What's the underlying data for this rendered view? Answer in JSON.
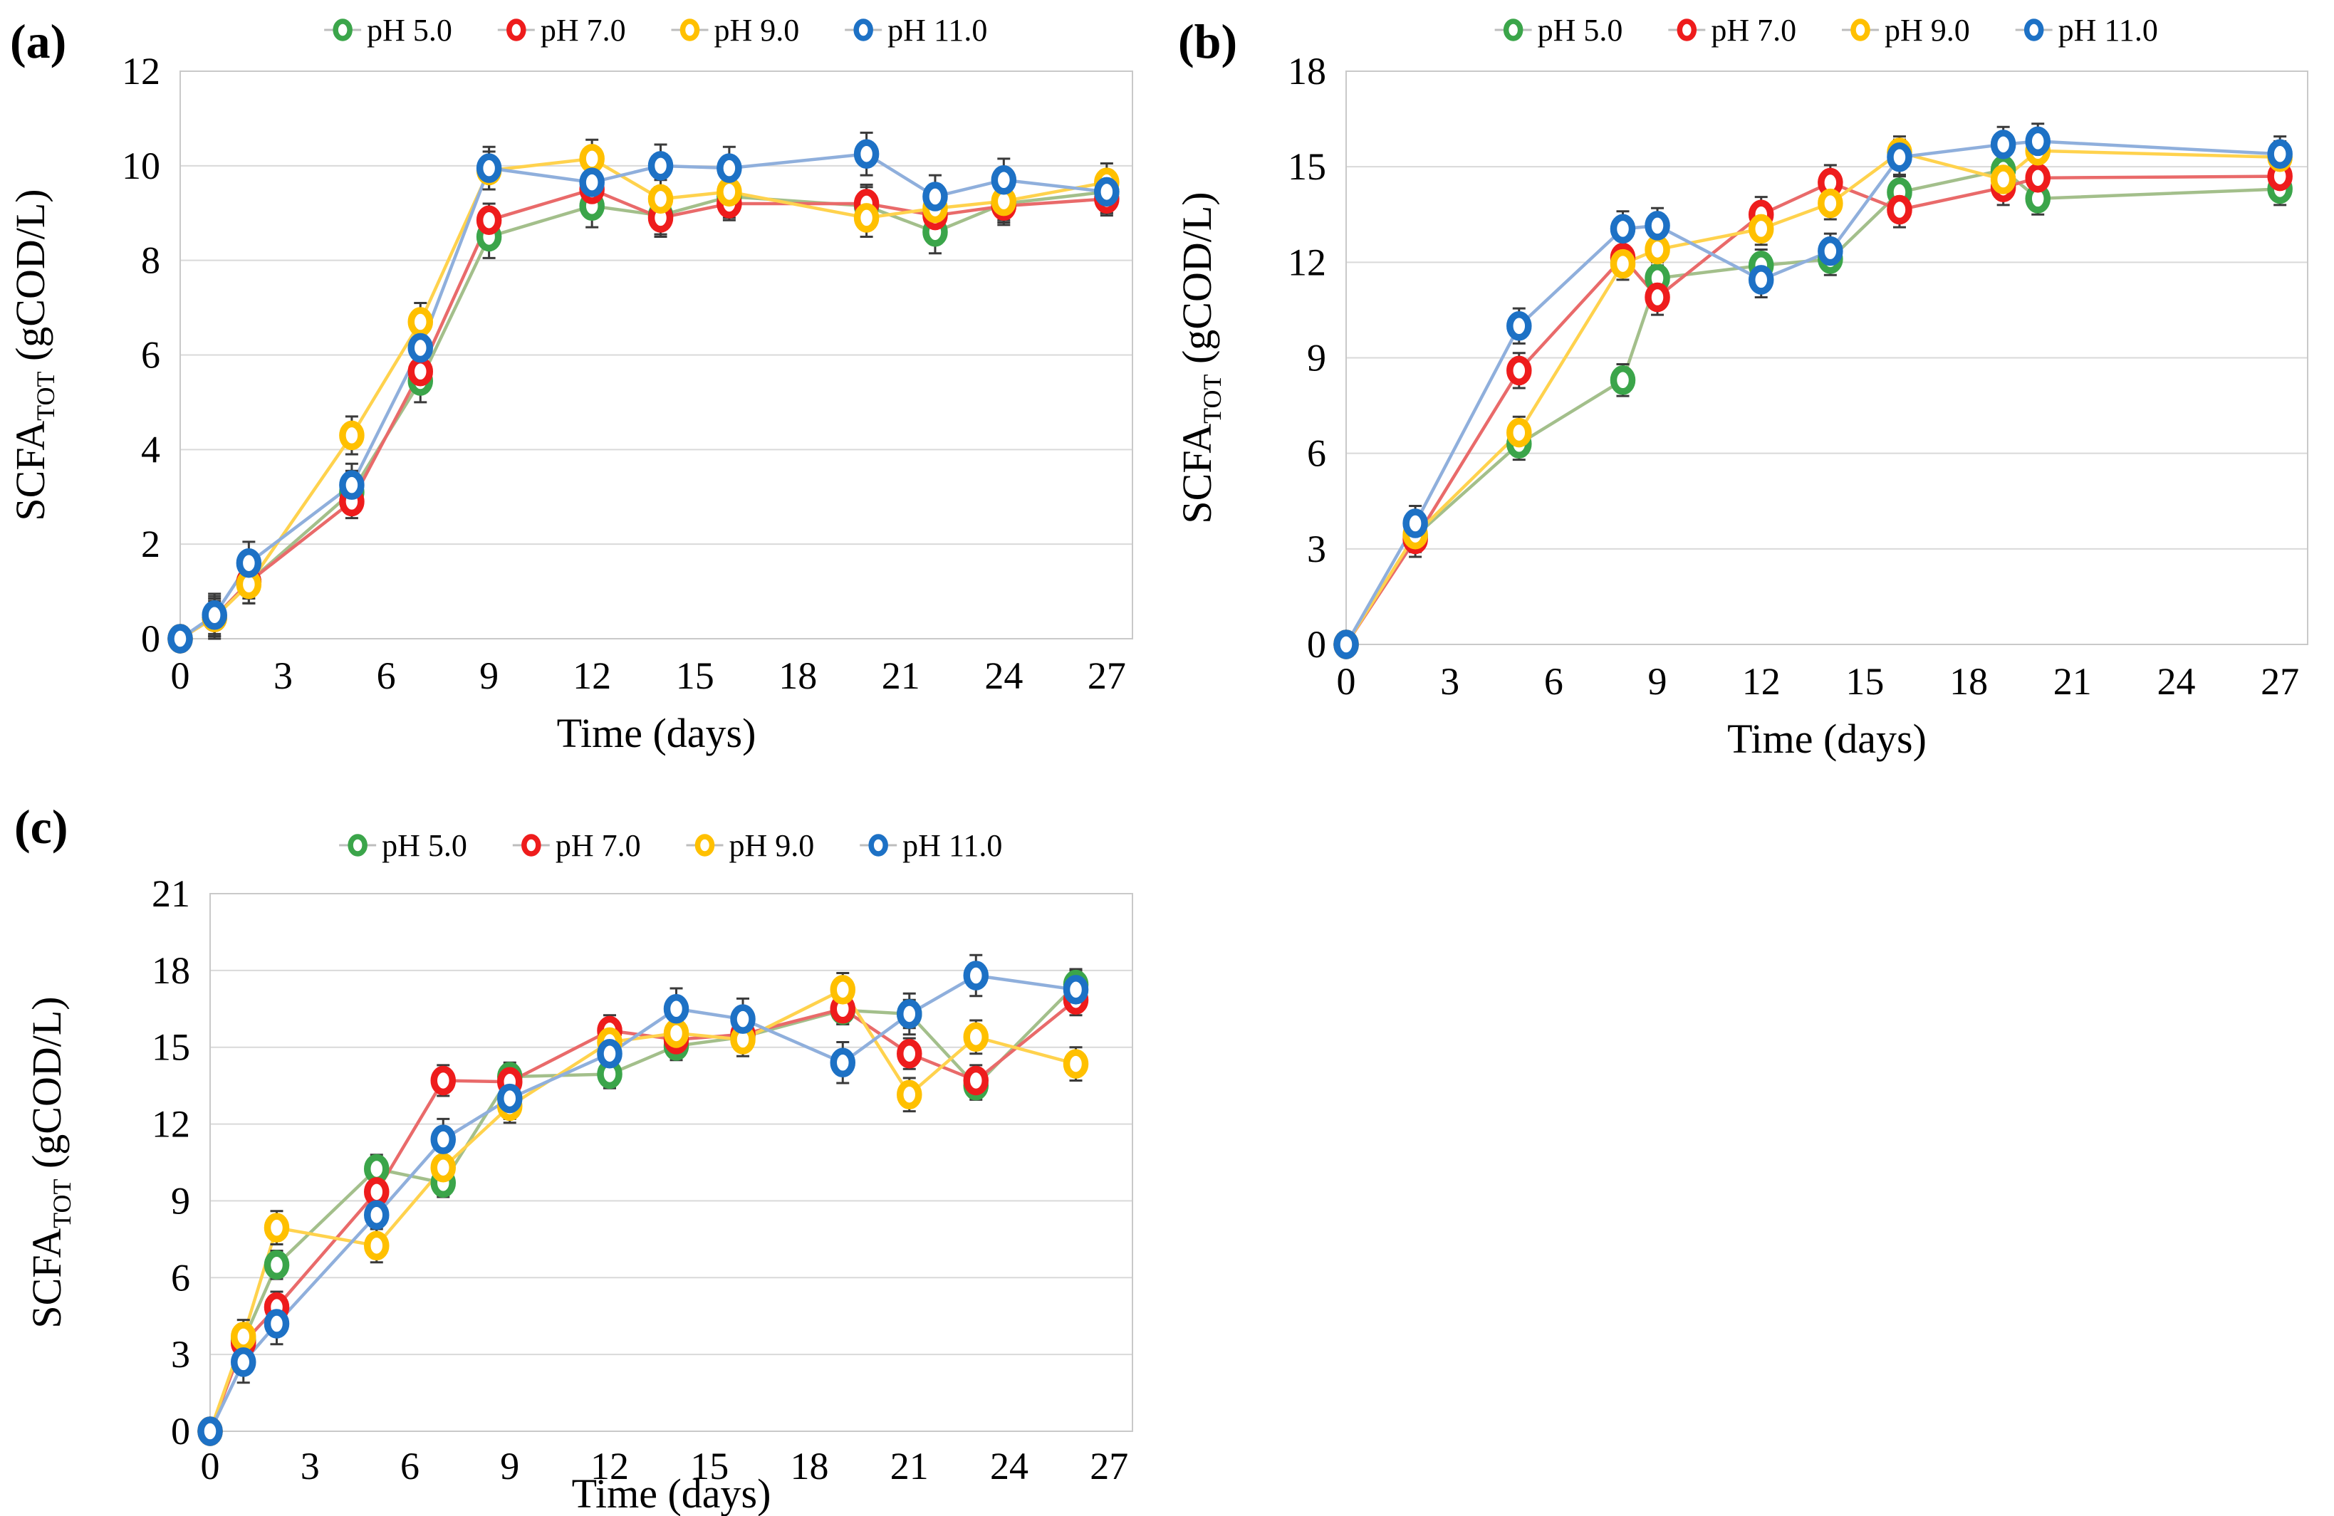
{
  "page": {
    "background": "#ffffff",
    "text_color": "#000000",
    "grid_color": "#d9d9d9",
    "border_color": "#c9c9c9",
    "error_bar_color": "#3a3a3a",
    "legend_connector_color": "#bdbdbd"
  },
  "chart_data": [
    {
      "panel": "(a)",
      "type": "line",
      "xlabel": "Time (days)",
      "ylabel": {
        "main": "SCFA",
        "sub": "TOT",
        "rest": " (gCOD/L)"
      },
      "xlim": [
        0,
        27.75
      ],
      "ylim": [
        0,
        12
      ],
      "xticks": [
        0,
        3,
        6,
        9,
        12,
        15,
        18,
        21,
        24,
        27
      ],
      "yticks": [
        0,
        2,
        4,
        6,
        8,
        10,
        12
      ],
      "grid": "horizontal",
      "legend_position": "top-center",
      "x_days": [
        0,
        1,
        2,
        5,
        7,
        9,
        12,
        14,
        16,
        20,
        22,
        24,
        27
      ],
      "series": [
        {
          "name": "pH 5.0",
          "marker_color": "#3BA54A",
          "line_color": "#A3BF8B",
          "err": 0.45,
          "values": [
            0,
            0.45,
            1.2,
            3.1,
            5.45,
            8.5,
            9.15,
            8.95,
            9.35,
            9.15,
            8.6,
            9.2,
            9.45
          ]
        },
        {
          "name": "pH 7.0",
          "marker_color": "#EE1C1C",
          "line_color": "#E96A6A",
          "err": 0.35,
          "values": [
            0,
            0.45,
            1.2,
            2.9,
            5.65,
            8.85,
            9.5,
            8.9,
            9.2,
            9.2,
            8.95,
            9.15,
            9.3
          ]
        },
        {
          "name": "pH 9.0",
          "marker_color": "#FFC000",
          "line_color": "#FFD24D",
          "err": 0.4,
          "values": [
            0,
            0.45,
            1.15,
            4.3,
            6.7,
            9.9,
            10.15,
            9.3,
            9.45,
            8.9,
            9.1,
            9.25,
            9.65
          ]
        },
        {
          "name": "pH 11.0",
          "marker_color": "#1D71C5",
          "line_color": "#8FAFDC",
          "err": 0.45,
          "values": [
            0,
            0.5,
            1.6,
            3.25,
            6.15,
            9.95,
            9.65,
            10.0,
            9.95,
            10.25,
            9.35,
            9.7,
            9.45
          ]
        }
      ]
    },
    {
      "panel": "(b)",
      "type": "line",
      "xlabel": "Time (days)",
      "ylabel": {
        "main": "SCFA",
        "sub": "TOT",
        "rest": " (gCOD/L)"
      },
      "xlim": [
        0,
        27.8
      ],
      "ylim": [
        0,
        18
      ],
      "xticks": [
        0,
        3,
        6,
        9,
        12,
        15,
        18,
        21,
        24,
        27
      ],
      "yticks": [
        0,
        3,
        6,
        9,
        12,
        15,
        18
      ],
      "grid": "horizontal",
      "legend_position": "top-center",
      "x_days": [
        0,
        2,
        5,
        8,
        9,
        12,
        14,
        16,
        19,
        20,
        27
      ],
      "series": [
        {
          "name": "pH 5.0",
          "marker_color": "#3BA54A",
          "line_color": "#A3BF8B",
          "err": 0.5,
          "values": [
            0,
            3.4,
            6.3,
            8.3,
            11.5,
            11.9,
            12.1,
            14.2,
            14.9,
            14.0,
            14.3
          ]
        },
        {
          "name": "pH 7.0",
          "marker_color": "#EE1C1C",
          "line_color": "#E96A6A",
          "err": 0.55,
          "values": [
            0,
            3.3,
            8.6,
            12.15,
            10.9,
            13.5,
            14.5,
            13.65,
            14.35,
            14.65,
            14.7
          ]
        },
        {
          "name": "pH 9.0",
          "marker_color": "#FFC000",
          "line_color": "#FFD24D",
          "err": 0.5,
          "values": [
            0,
            3.45,
            6.65,
            11.95,
            12.4,
            13.05,
            13.85,
            15.45,
            14.6,
            15.5,
            15.3
          ]
        },
        {
          "name": "pH 11.0",
          "marker_color": "#1D71C5",
          "line_color": "#8FAFDC",
          "err": 0.55,
          "values": [
            0,
            3.8,
            10.0,
            13.05,
            13.15,
            11.45,
            12.35,
            15.3,
            15.7,
            15.8,
            15.4
          ]
        }
      ]
    },
    {
      "panel": "(c)",
      "type": "line",
      "xlabel": "Time (days)",
      "ylabel": {
        "main": "SCFA",
        "sub": "TOT",
        "rest": " (gCOD/L)"
      },
      "xlim": [
        0,
        27.7
      ],
      "ylim": [
        0,
        21
      ],
      "xticks": [
        0,
        3,
        6,
        9,
        12,
        15,
        18,
        21,
        24,
        27
      ],
      "yticks": [
        0,
        3,
        6,
        9,
        12,
        15,
        18,
        21
      ],
      "grid": "horizontal",
      "legend_position": "top-center",
      "x_days": [
        0,
        1,
        2,
        5,
        7,
        9,
        12,
        14,
        16,
        19,
        21,
        23,
        26
      ],
      "series": [
        {
          "name": "pH 5.0",
          "marker_color": "#3BA54A",
          "line_color": "#A3BF8B",
          "err": 0.55,
          "values": [
            0,
            3.55,
            6.5,
            10.25,
            9.7,
            13.85,
            13.95,
            15.05,
            15.4,
            16.45,
            16.3,
            13.5,
            17.45
          ]
        },
        {
          "name": "pH 7.0",
          "marker_color": "#EE1C1C",
          "line_color": "#E96A6A",
          "err": 0.6,
          "values": [
            0,
            3.45,
            4.85,
            9.35,
            13.7,
            13.65,
            15.65,
            15.3,
            15.5,
            16.5,
            14.75,
            13.7,
            16.85
          ]
        },
        {
          "name": "pH 9.0",
          "marker_color": "#FFC000",
          "line_color": "#FFD24D",
          "err": 0.65,
          "values": [
            0,
            3.7,
            7.95,
            7.25,
            10.3,
            12.7,
            15.2,
            15.55,
            15.3,
            17.25,
            13.15,
            15.4,
            14.35
          ]
        },
        {
          "name": "pH 11.0",
          "marker_color": "#1D71C5",
          "line_color": "#8FAFDC",
          "err": 0.8,
          "values": [
            0,
            2.7,
            4.2,
            8.45,
            11.4,
            13.0,
            14.75,
            16.5,
            16.1,
            14.4,
            16.3,
            17.8,
            17.25
          ]
        }
      ]
    }
  ]
}
